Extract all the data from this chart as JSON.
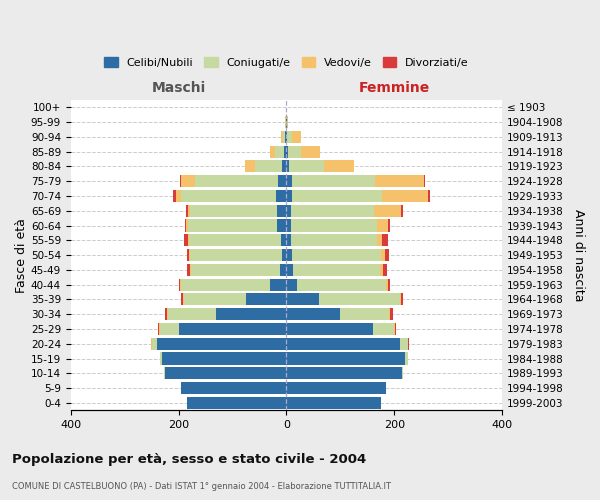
{
  "age_groups": [
    "0-4",
    "5-9",
    "10-14",
    "15-19",
    "20-24",
    "25-29",
    "30-34",
    "35-39",
    "40-44",
    "45-49",
    "50-54",
    "55-59",
    "60-64",
    "65-69",
    "70-74",
    "75-79",
    "80-84",
    "85-89",
    "90-94",
    "95-99",
    "100+"
  ],
  "birth_years": [
    "1999-2003",
    "1994-1998",
    "1989-1993",
    "1984-1988",
    "1979-1983",
    "1974-1978",
    "1969-1973",
    "1964-1968",
    "1959-1963",
    "1954-1958",
    "1949-1953",
    "1944-1948",
    "1939-1943",
    "1934-1938",
    "1929-1933",
    "1924-1928",
    "1919-1923",
    "1914-1918",
    "1909-1913",
    "1904-1908",
    "≤ 1903"
  ],
  "males": {
    "celibi": [
      185,
      195,
      225,
      230,
      240,
      200,
      130,
      75,
      30,
      12,
      8,
      10,
      18,
      18,
      20,
      15,
      8,
      4,
      2,
      1,
      0
    ],
    "coniugati": [
      0,
      0,
      2,
      5,
      10,
      35,
      90,
      115,
      165,
      165,
      170,
      170,
      165,
      160,
      175,
      155,
      50,
      18,
      5,
      1,
      0
    ],
    "vedovi": [
      0,
      0,
      0,
      0,
      1,
      2,
      2,
      2,
      2,
      2,
      2,
      2,
      3,
      5,
      10,
      25,
      18,
      8,
      3,
      0,
      0
    ],
    "divorziati": [
      0,
      0,
      0,
      0,
      1,
      2,
      3,
      4,
      3,
      5,
      4,
      8,
      3,
      4,
      5,
      2,
      1,
      0,
      0,
      0,
      0
    ]
  },
  "females": {
    "nubili": [
      175,
      185,
      215,
      220,
      210,
      160,
      100,
      60,
      20,
      12,
      10,
      8,
      8,
      8,
      10,
      10,
      5,
      3,
      2,
      1,
      0
    ],
    "coniugate": [
      0,
      0,
      2,
      5,
      15,
      40,
      90,
      150,
      165,
      162,
      165,
      160,
      160,
      155,
      168,
      155,
      65,
      25,
      8,
      1,
      0
    ],
    "vedove": [
      0,
      0,
      0,
      0,
      1,
      2,
      2,
      2,
      3,
      5,
      8,
      10,
      20,
      50,
      85,
      90,
      55,
      35,
      18,
      1,
      0
    ],
    "divorziate": [
      0,
      0,
      0,
      0,
      1,
      2,
      5,
      5,
      5,
      8,
      8,
      10,
      5,
      3,
      3,
      2,
      1,
      0,
      0,
      0,
      0
    ]
  },
  "colors": {
    "celibi": "#2e6da4",
    "coniugati": "#c5d9a0",
    "vedovi": "#f5c26b",
    "divorziati": "#d93b3b"
  },
  "xlim": 400,
  "title": "Popolazione per età, sesso e stato civile - 2004",
  "subtitle": "COMUNE DI CASTELBUONO (PA) - Dati ISTAT 1° gennaio 2004 - Elaborazione TUTTITALIA.IT",
  "ylabel_left": "Fasce di età",
  "ylabel_right": "Anni di nascita",
  "label_maschi": "Maschi",
  "label_femmine": "Femmine",
  "legend_labels": [
    "Celibi/Nubili",
    "Coniugati/e",
    "Vedovi/e",
    "Divorziati/e"
  ],
  "bg_color": "#ebebeb",
  "plot_bg_color": "#ffffff"
}
